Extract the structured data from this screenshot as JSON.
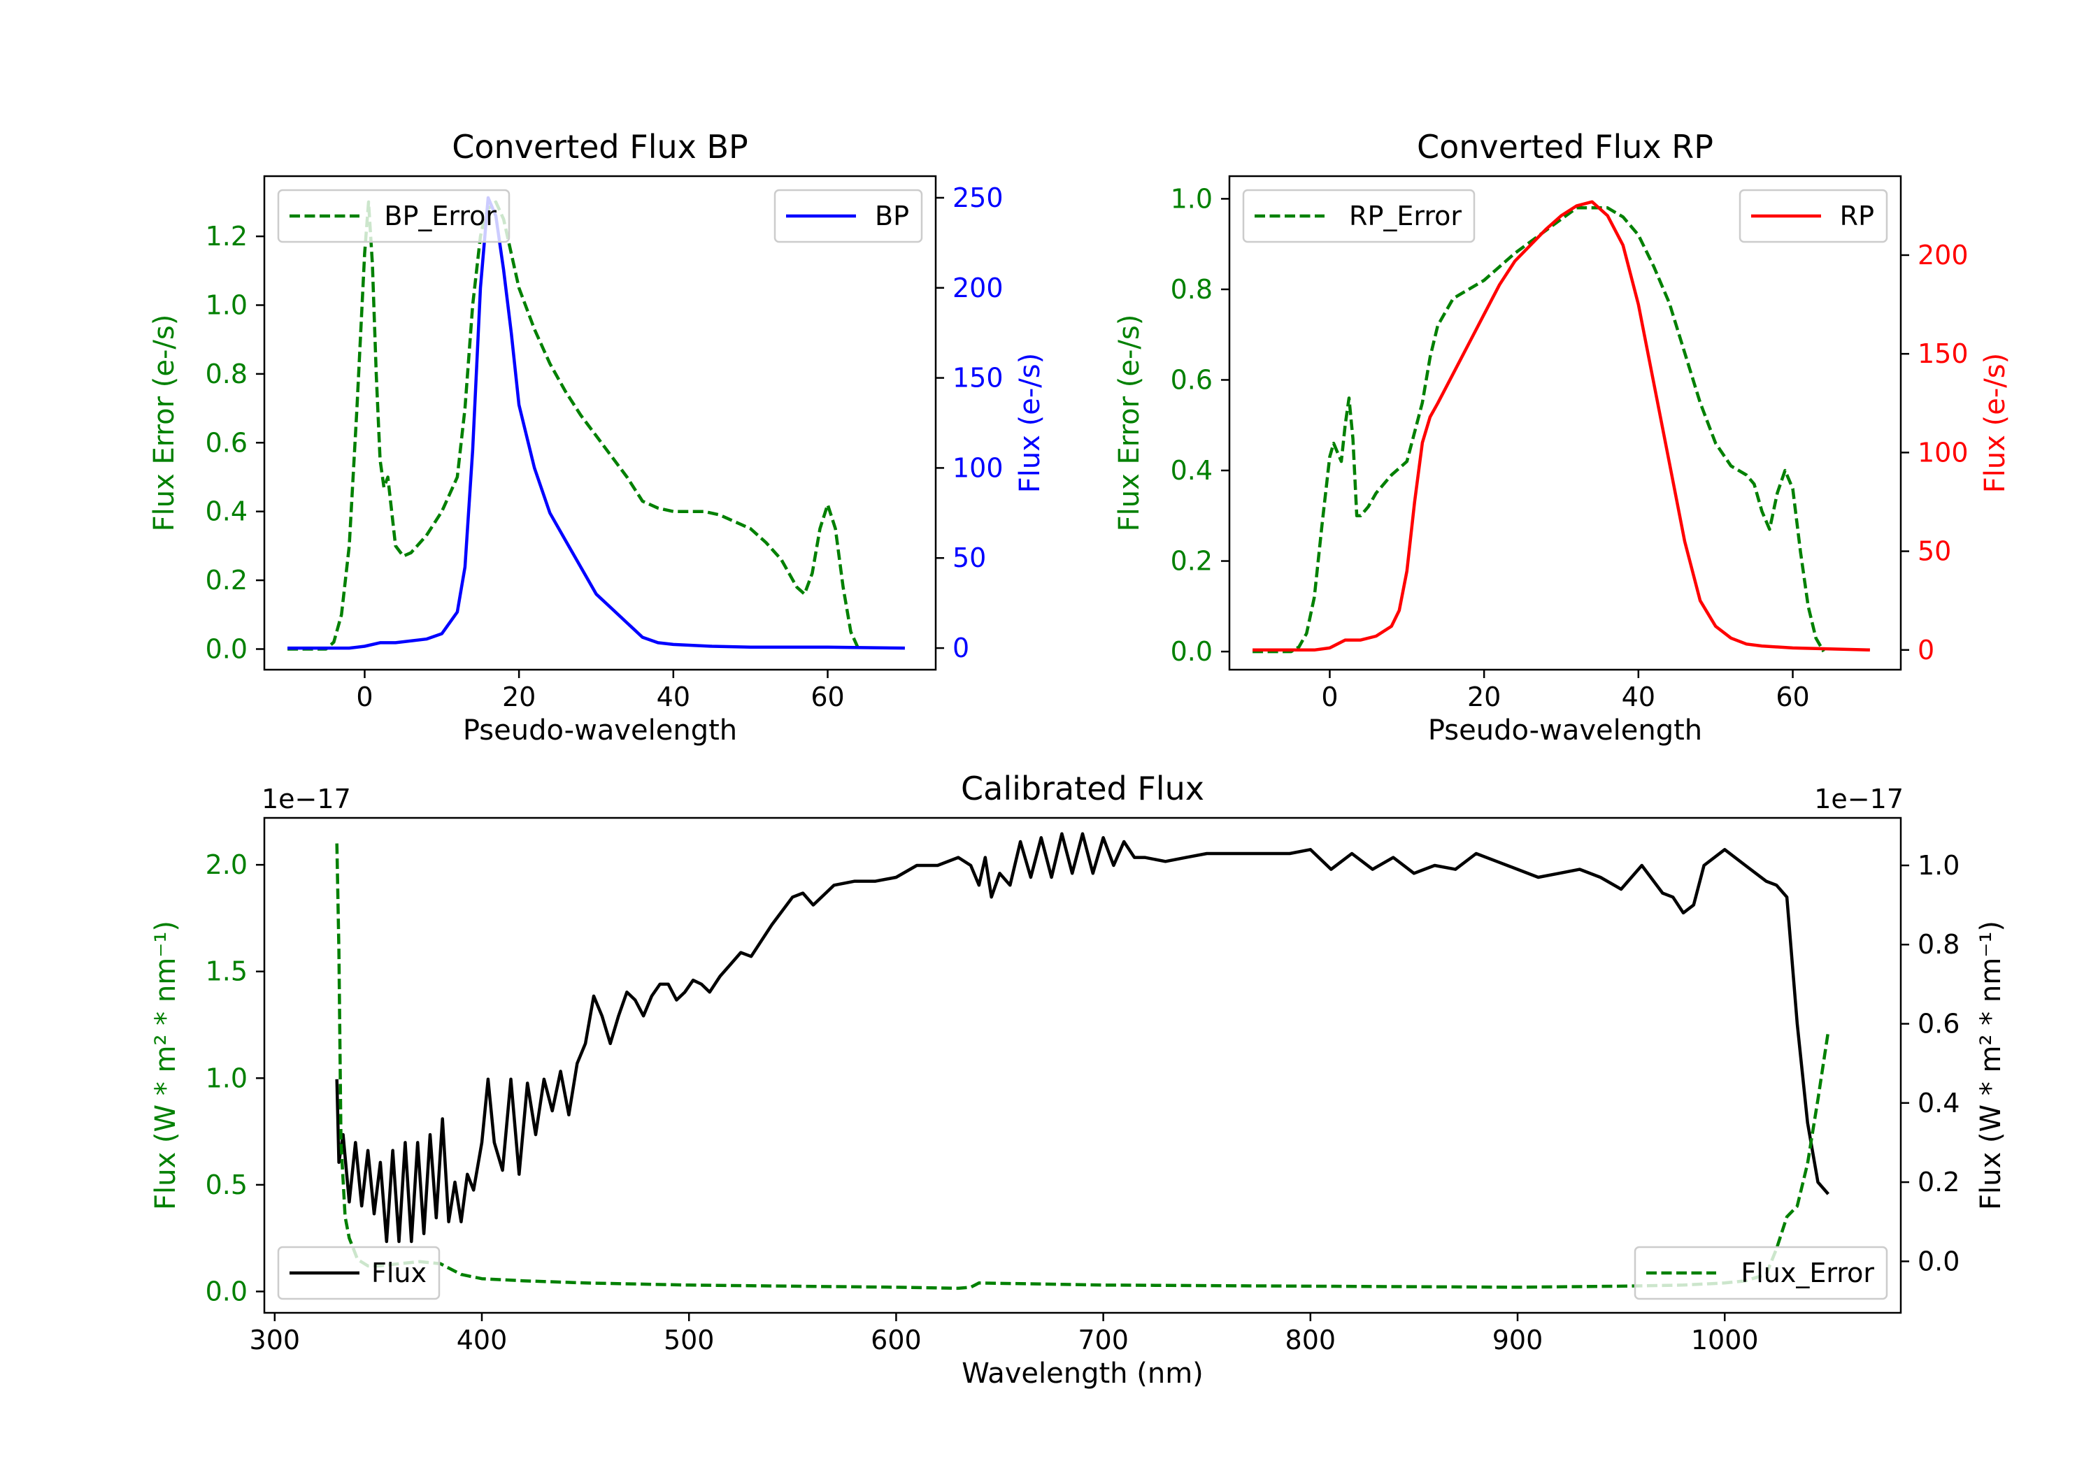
{
  "chart_data": [
    {
      "type": "line",
      "title": "Converted Flux BP",
      "xlabel": "Pseudo-wavelength",
      "xlim": [
        -13,
        74
      ],
      "xticks": [
        0,
        20,
        40,
        60
      ],
      "left_axis": {
        "label": "Flux Error (e-/s)",
        "color": "#008000",
        "ylim": [
          -0.06,
          1.375
        ],
        "ticks": [
          "0.0",
          "0.2",
          "0.4",
          "0.6",
          "0.8",
          "1.0",
          "1.2"
        ]
      },
      "right_axis": {
        "label": "Flux (e-/s)",
        "color": "#0000ff",
        "ylim": [
          -12,
          262
        ],
        "ticks": [
          "0",
          "50",
          "100",
          "150",
          "200",
          "250"
        ]
      },
      "series": [
        {
          "name": "BP_Error",
          "axis": "left",
          "color": "#008000",
          "style": "dashed",
          "legend": "upper left",
          "x": [
            -10,
            -5,
            -4,
            -3,
            -2,
            -1,
            0,
            0.5,
            1,
            1.5,
            2,
            2.5,
            3,
            3.5,
            4,
            5,
            6,
            8,
            10,
            12,
            13,
            14,
            15,
            15.5,
            16,
            17,
            18,
            19,
            20,
            22,
            24,
            26,
            28,
            30,
            32,
            34,
            36,
            38,
            40,
            42,
            44,
            46,
            48,
            50,
            52,
            54,
            55,
            56,
            57,
            58,
            59,
            60,
            61,
            62,
            63,
            64
          ],
          "y": [
            0,
            0,
            0.02,
            0.1,
            0.3,
            0.7,
            1.15,
            1.3,
            1.12,
            0.8,
            0.55,
            0.47,
            0.5,
            0.4,
            0.3,
            0.27,
            0.28,
            0.33,
            0.4,
            0.5,
            0.7,
            1.0,
            1.2,
            1.25,
            1.28,
            1.3,
            1.25,
            1.15,
            1.05,
            0.93,
            0.83,
            0.75,
            0.68,
            0.62,
            0.56,
            0.5,
            0.43,
            0.41,
            0.4,
            0.4,
            0.4,
            0.39,
            0.37,
            0.35,
            0.31,
            0.26,
            0.22,
            0.18,
            0.16,
            0.22,
            0.35,
            0.42,
            0.35,
            0.18,
            0.05,
            0
          ]
        },
        {
          "name": "BP",
          "axis": "right",
          "color": "#0000ff",
          "style": "solid",
          "legend": "upper right",
          "x": [
            -10,
            -2,
            0,
            2,
            4,
            8,
            10,
            12,
            13,
            14,
            15,
            16,
            17,
            18,
            19,
            20,
            22,
            24,
            26,
            28,
            30,
            32,
            34,
            35,
            36,
            38,
            40,
            45,
            50,
            60,
            70
          ],
          "y": [
            0,
            0,
            1,
            3,
            3,
            5,
            8,
            20,
            45,
            110,
            200,
            250,
            240,
            210,
            175,
            135,
            100,
            75,
            60,
            45,
            30,
            22,
            14,
            10,
            6,
            3,
            2,
            1,
            0.5,
            0.5,
            0
          ]
        }
      ]
    },
    {
      "type": "line",
      "title": "Converted Flux RP",
      "xlabel": "Pseudo-wavelength",
      "xlim": [
        -13,
        74
      ],
      "xticks": [
        0,
        20,
        40,
        60
      ],
      "left_axis": {
        "label": "Flux Error (e-/s)",
        "color": "#008000",
        "ylim": [
          -0.04,
          1.05
        ],
        "ticks": [
          "0.0",
          "0.2",
          "0.4",
          "0.6",
          "0.8",
          "1.0"
        ]
      },
      "right_axis": {
        "label": "Flux (e-/s)",
        "color": "#ff0000",
        "ylim": [
          -10,
          240
        ],
        "ticks": [
          "0",
          "50",
          "100",
          "150",
          "200"
        ]
      },
      "series": [
        {
          "name": "RP_Error",
          "axis": "left",
          "color": "#008000",
          "style": "dashed",
          "legend": "upper left",
          "x": [
            -10,
            -5,
            -4,
            -3,
            -2,
            -1,
            0,
            0.5,
            1,
            1.5,
            2,
            2.5,
            3,
            3.5,
            4,
            5,
            6,
            8,
            10,
            12,
            13,
            14,
            16,
            18,
            20,
            24,
            28,
            32,
            36,
            38,
            40,
            42,
            44,
            46,
            48,
            50,
            52,
            54,
            55,
            56,
            57,
            58,
            59,
            60,
            61,
            62,
            63,
            64
          ],
          "y": [
            0,
            0,
            0.01,
            0.04,
            0.12,
            0.28,
            0.43,
            0.46,
            0.44,
            0.42,
            0.5,
            0.56,
            0.47,
            0.3,
            0.3,
            0.32,
            0.35,
            0.39,
            0.42,
            0.55,
            0.65,
            0.72,
            0.78,
            0.8,
            0.82,
            0.88,
            0.93,
            0.98,
            0.98,
            0.96,
            0.92,
            0.85,
            0.77,
            0.66,
            0.55,
            0.46,
            0.41,
            0.39,
            0.37,
            0.31,
            0.27,
            0.35,
            0.4,
            0.36,
            0.22,
            0.1,
            0.03,
            0
          ]
        },
        {
          "name": "RP",
          "axis": "right",
          "color": "#ff0000",
          "style": "solid",
          "legend": "upper right",
          "x": [
            -10,
            -2,
            0,
            2,
            4,
            6,
            8,
            9,
            10,
            11,
            12,
            13,
            14,
            16,
            18,
            20,
            22,
            24,
            26,
            28,
            30,
            32,
            34,
            36,
            38,
            40,
            42,
            44,
            46,
            48,
            50,
            52,
            54,
            56,
            60,
            70
          ],
          "y": [
            0,
            0,
            1,
            5,
            5,
            7,
            12,
            20,
            40,
            75,
            105,
            118,
            125,
            140,
            155,
            170,
            185,
            197,
            205,
            213,
            220,
            225,
            227,
            220,
            205,
            175,
            135,
            95,
            55,
            25,
            12,
            6,
            3,
            2,
            1,
            0
          ]
        }
      ]
    },
    {
      "type": "line",
      "title": "Calibrated Flux",
      "xlabel": "Wavelength (nm)",
      "xlim": [
        295,
        1085
      ],
      "xticks": [
        300,
        400,
        500,
        600,
        700,
        800,
        900,
        1000
      ],
      "left_axis": {
        "label": "Flux (W * m² * nm⁻¹)",
        "color": "#008000",
        "offset_text": "1e−17",
        "ylim": [
          -0.1,
          2.22
        ],
        "ticks": [
          "0.0",
          "0.5",
          "1.0",
          "1.5",
          "2.0"
        ]
      },
      "right_axis": {
        "label": "Flux (W * m² * nm⁻¹)",
        "color": "#000000",
        "offset_text": "1e−17",
        "ylim": [
          -0.13,
          1.12
        ],
        "ticks": [
          "0.0",
          "0.2",
          "0.4",
          "0.6",
          "0.8",
          "1.0"
        ]
      },
      "series": [
        {
          "name": "Flux",
          "axis": "right",
          "color": "#000000",
          "style": "solid",
          "legend": "lower left",
          "x": [
            330,
            331,
            333,
            336,
            339,
            342,
            345,
            348,
            351,
            354,
            357,
            360,
            363,
            366,
            369,
            372,
            375,
            378,
            381,
            384,
            387,
            390,
            393,
            396,
            400,
            403,
            406,
            410,
            414,
            418,
            422,
            426,
            430,
            434,
            438,
            442,
            446,
            450,
            454,
            458,
            462,
            466,
            470,
            474,
            478,
            482,
            486,
            490,
            494,
            498,
            502,
            506,
            510,
            515,
            520,
            525,
            530,
            540,
            550,
            555,
            560,
            570,
            580,
            590,
            600,
            610,
            620,
            630,
            636,
            640,
            643,
            646,
            650,
            655,
            660,
            665,
            670,
            675,
            680,
            685,
            690,
            695,
            700,
            705,
            710,
            715,
            720,
            730,
            740,
            750,
            760,
            770,
            780,
            790,
            800,
            810,
            820,
            830,
            840,
            850,
            860,
            870,
            880,
            890,
            900,
            910,
            920,
            930,
            940,
            950,
            960,
            970,
            975,
            980,
            985,
            990,
            1000,
            1010,
            1020,
            1025,
            1030,
            1035,
            1040,
            1045,
            1050
          ],
          "y": [
            0.46,
            0.25,
            0.32,
            0.15,
            0.3,
            0.14,
            0.28,
            0.12,
            0.25,
            0.05,
            0.28,
            0.05,
            0.3,
            0.05,
            0.3,
            0.07,
            0.32,
            0.11,
            0.36,
            0.1,
            0.2,
            0.1,
            0.22,
            0.18,
            0.3,
            0.46,
            0.3,
            0.23,
            0.46,
            0.22,
            0.45,
            0.32,
            0.46,
            0.38,
            0.48,
            0.37,
            0.5,
            0.55,
            0.67,
            0.62,
            0.55,
            0.62,
            0.68,
            0.66,
            0.62,
            0.67,
            0.7,
            0.7,
            0.66,
            0.68,
            0.71,
            0.7,
            0.68,
            0.72,
            0.75,
            0.78,
            0.77,
            0.85,
            0.92,
            0.93,
            0.9,
            0.95,
            0.96,
            0.96,
            0.97,
            1.0,
            1.0,
            1.02,
            1.0,
            0.95,
            1.02,
            0.92,
            0.98,
            0.95,
            1.06,
            0.97,
            1.07,
            0.97,
            1.08,
            0.98,
            1.08,
            0.98,
            1.07,
            1.0,
            1.06,
            1.02,
            1.02,
            1.01,
            1.02,
            1.03,
            1.03,
            1.03,
            1.03,
            1.03,
            1.04,
            0.99,
            1.03,
            0.99,
            1.02,
            0.98,
            1.0,
            0.99,
            1.03,
            1.01,
            0.99,
            0.97,
            0.98,
            0.99,
            0.97,
            0.94,
            1.0,
            0.93,
            0.92,
            0.88,
            0.9,
            1.0,
            1.04,
            1.0,
            0.96,
            0.95,
            0.92,
            0.6,
            0.35,
            0.2,
            0.17
          ]
        },
        {
          "name": "Flux_Error",
          "axis": "left",
          "color": "#008000",
          "style": "dashed",
          "legend": "lower right",
          "x": [
            330,
            331,
            332,
            334,
            336,
            338,
            340,
            345,
            350,
            360,
            370,
            380,
            390,
            400,
            420,
            450,
            500,
            550,
            600,
            630,
            636,
            640,
            700,
            800,
            900,
            950,
            980,
            1000,
            1010,
            1020,
            1025,
            1030,
            1035,
            1040,
            1045,
            1050
          ],
          "y": [
            2.1,
            1.6,
            0.7,
            0.35,
            0.25,
            0.2,
            0.15,
            0.12,
            0.12,
            0.13,
            0.14,
            0.13,
            0.08,
            0.06,
            0.05,
            0.04,
            0.03,
            0.025,
            0.02,
            0.015,
            0.02,
            0.04,
            0.03,
            0.025,
            0.02,
            0.025,
            0.03,
            0.04,
            0.05,
            0.08,
            0.2,
            0.35,
            0.4,
            0.6,
            0.9,
            1.22
          ]
        }
      ]
    }
  ]
}
